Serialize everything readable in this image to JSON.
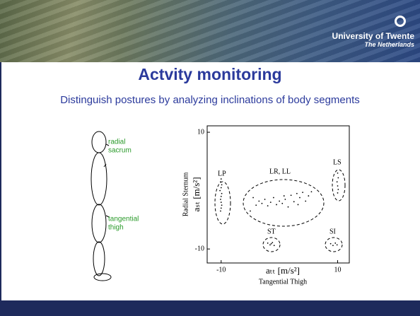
{
  "header": {
    "logo_title": "University of Twente",
    "logo_subtitle": "The Netherlands"
  },
  "title": "Actvity monitoring",
  "subtitle": "Distinguish postures by analyzing inclinations of body segments",
  "figure": {
    "labels": [
      "radial",
      "sacrum",
      "tangential",
      "thigh"
    ]
  },
  "chart_data": {
    "type": "scatter",
    "x_label": "Tangential Thigh",
    "x_unit": "aₜₜ  [m/s²]",
    "y_label": "Radial Sternum",
    "y_unit": "aₛₜ  [m/s²]",
    "annotations": [
      "LP",
      "LR, LL",
      "LS",
      "ST",
      "SI"
    ],
    "color": "#000000",
    "xlim": [
      -12.4,
      12
    ],
    "ylim": [
      -12.4,
      11.1
    ],
    "xticks": [
      -10,
      10
    ],
    "yticks": [
      -10,
      10
    ],
    "x": [
      -10,
      -10.1,
      -9.9,
      -10,
      -10.2,
      -9.9,
      -10,
      -10.1,
      -10,
      -9.9,
      -10,
      -10.1,
      -5,
      -4,
      -3.5,
      -3,
      -2.5,
      -2,
      -1.5,
      -1,
      -0.5,
      0,
      0.5,
      1,
      1.5,
      2,
      2.5,
      3,
      3.5,
      4,
      4.5,
      5,
      5.5,
      -4.5,
      0.8,
      3.2,
      10,
      10.1,
      9.9,
      10,
      10.1,
      10,
      -2,
      -1.6,
      -1.2,
      -0.9,
      -1.4,
      8.8,
      9.2,
      9.6,
      9.9
    ],
    "y": [
      2,
      1.5,
      1,
      0.5,
      0,
      -0.5,
      -1,
      -1.5,
      -2,
      -2.5,
      -3,
      -3.5,
      -3.5,
      -2.5,
      -1.8,
      -2.2,
      -1.5,
      -2.6,
      -2,
      -1.2,
      -2.4,
      -1.8,
      -2.2,
      -1.5,
      -2.8,
      -0.8,
      -1.9,
      -0.5,
      -1.2,
      -0.3,
      -1.8,
      -0.9,
      -0.2,
      -1.2,
      -0.9,
      -2.4,
      3,
      2.2,
      1.5,
      0.8,
      0.2,
      -0.4,
      -9,
      -9.3,
      -8.9,
      -9.4,
      -9.1,
      -9.1,
      -9.4,
      -9,
      -9.3
    ]
  }
}
